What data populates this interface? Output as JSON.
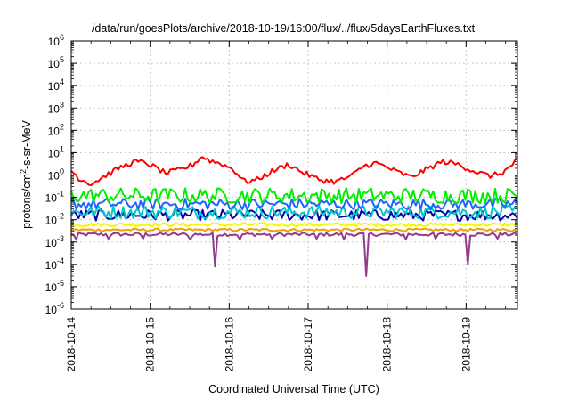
{
  "chart_data": {
    "type": "line",
    "title": "/data/run/goesPlots/archive/2018-10-19/16:00/flux/../flux/5daysEarthFluxes.txt",
    "xlabel": "Coordinated Universal Time (UTC)",
    "ylabel": "protons/cm²-s-sr-MeV",
    "ylabel_parts": {
      "pre": "protons/cm",
      "sup": "2",
      "post": "-s-sr-MeV"
    },
    "yscale": "log",
    "ylim_exponents": [
      -6,
      6
    ],
    "y_tick_labels": [
      {
        "base": "10",
        "exp": "-6"
      },
      {
        "base": "10",
        "exp": "-5"
      },
      {
        "base": "10",
        "exp": "-4"
      },
      {
        "base": "10",
        "exp": "-3"
      },
      {
        "base": "10",
        "exp": "-2"
      },
      {
        "base": "10",
        "exp": "-1"
      },
      {
        "base": "10",
        "exp": "0"
      },
      {
        "base": "10",
        "exp": "1"
      },
      {
        "base": "10",
        "exp": "2"
      },
      {
        "base": "10",
        "exp": "3"
      },
      {
        "base": "10",
        "exp": "4"
      },
      {
        "base": "10",
        "exp": "5"
      },
      {
        "base": "10",
        "exp": "6"
      }
    ],
    "x_tick_labels": [
      "2018-10-14",
      "2018-10-15",
      "2018-10-16",
      "2018-10-17",
      "2018-10-18",
      "2018-10-19"
    ],
    "xlim_days": [
      0,
      5.65
    ],
    "grid": true,
    "colors": {
      "red": "#ff0000",
      "green": "#00ee00",
      "blue": "#1f64ff",
      "cyan": "#00c8c8",
      "navy": "#0000b4",
      "yellow": "#f5f500",
      "orange": "#f0a000",
      "purple": "#943c8c",
      "grid": "#c8c8c8"
    },
    "series": [
      {
        "color": "red",
        "x": [
          0,
          0.1,
          0.25,
          0.4,
          0.6,
          0.8,
          0.95,
          1.2,
          1.4,
          1.55,
          1.65,
          1.75,
          1.9,
          2.05,
          2.2,
          2.35,
          2.55,
          2.75,
          2.95,
          3.15,
          3.35,
          3.55,
          3.7,
          3.85,
          3.95,
          4.1,
          4.3,
          4.5,
          4.7,
          4.9,
          5.1,
          5.3,
          5.45,
          5.55,
          5.65
        ],
        "y": [
          1.6,
          0.7,
          0.4,
          0.8,
          2.0,
          4.0,
          3.5,
          1.2,
          1.8,
          3.0,
          7.0,
          4.5,
          3.2,
          1.8,
          0.5,
          0.6,
          1.5,
          3.0,
          1.2,
          0.6,
          0.5,
          0.9,
          2.5,
          3.5,
          2.6,
          1.5,
          0.8,
          1.8,
          4.0,
          3.0,
          1.5,
          0.9,
          1.2,
          2.2,
          5.0
        ],
        "noise": 0.12
      },
      {
        "color": "green",
        "x": [
          0,
          5.65
        ],
        "y": [
          0.12,
          0.12
        ],
        "noise": 0.35
      },
      {
        "color": "blue",
        "x": [
          0,
          5.65
        ],
        "y": [
          0.05,
          0.05
        ],
        "noise": 0.25
      },
      {
        "color": "cyan",
        "x": [
          0,
          5.65
        ],
        "y": [
          0.022,
          0.022
        ],
        "noise": 0.3
      },
      {
        "color": "navy",
        "x": [
          0,
          5.65
        ],
        "y": [
          0.016,
          0.016
        ],
        "noise": 0.25
      },
      {
        "color": "yellow",
        "x": [
          0,
          5.65
        ],
        "y": [
          0.006,
          0.006
        ],
        "noise": 0.08
      },
      {
        "color": "orange",
        "x": [
          0,
          5.65
        ],
        "y": [
          0.0035,
          0.0035
        ],
        "noise": 0.06
      },
      {
        "color": "purple",
        "x": [
          0,
          5.65
        ],
        "y": [
          0.0022,
          0.0022
        ],
        "noise": 0.08,
        "dips": [
          {
            "x": 0.05,
            "y": 0.0013
          },
          {
            "x": 0.48,
            "y": 0.0014
          },
          {
            "x": 0.9,
            "y": 0.0014
          },
          {
            "x": 1.5,
            "y": 0.0013
          },
          {
            "x": 1.82,
            "y": 8e-05
          },
          {
            "x": 2.15,
            "y": 0.0013
          },
          {
            "x": 2.55,
            "y": 0.0014
          },
          {
            "x": 3.1,
            "y": 0.0014
          },
          {
            "x": 3.45,
            "y": 0.0013
          },
          {
            "x": 3.75,
            "y": 3e-05
          },
          {
            "x": 4.25,
            "y": 0.0013
          },
          {
            "x": 4.6,
            "y": 0.0014
          },
          {
            "x": 5.03,
            "y": 0.0001
          },
          {
            "x": 5.4,
            "y": 0.0014
          }
        ]
      }
    ]
  }
}
